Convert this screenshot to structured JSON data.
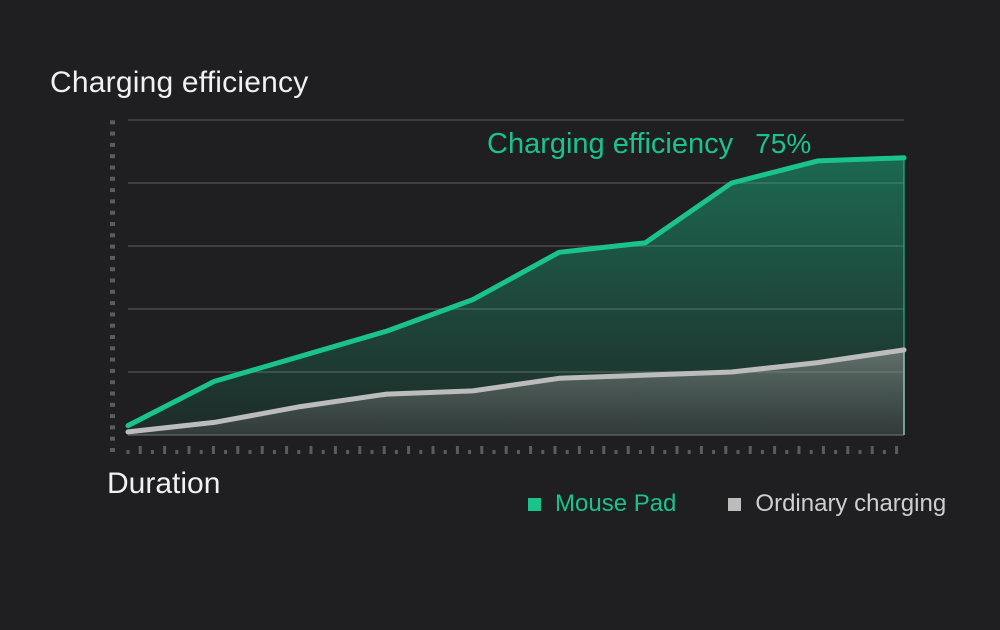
{
  "chart_data": {
    "type": "area",
    "ylabel": "Charging efficiency",
    "xlabel": "Duration",
    "annotation": {
      "text": "Charging efficiency",
      "value": "75%"
    },
    "x": [
      0,
      1,
      2,
      3,
      4,
      5,
      6,
      7,
      8,
      9
    ],
    "ylim": [
      0,
      100
    ],
    "gridlines": 5,
    "legend_position": "bottom-right",
    "series": [
      {
        "name": "Mouse Pad",
        "color": "#19c38b",
        "values": [
          3,
          17,
          25,
          33,
          43,
          58,
          61,
          80,
          87,
          88
        ]
      },
      {
        "name": "Ordinary charging",
        "color": "#bcbcbc",
        "values": [
          1,
          4,
          9,
          13,
          14,
          18,
          19,
          20,
          23,
          27
        ]
      }
    ]
  }
}
